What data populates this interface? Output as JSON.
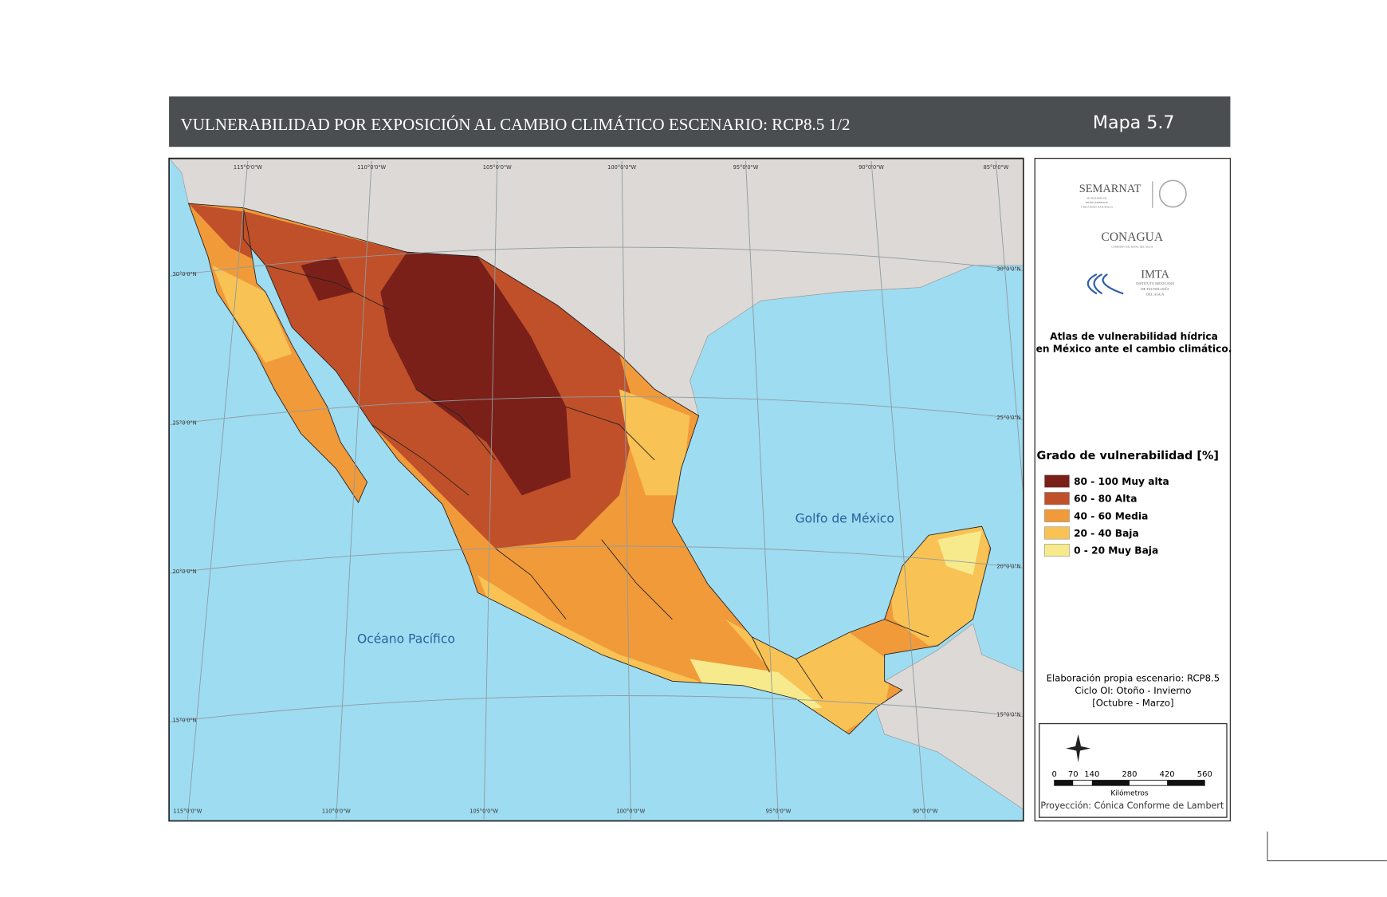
{
  "header": {
    "title": "VULNERABILIDAD POR EXPOSICIÓN AL CAMBIO CLIMÁTICO ESCENARIO: RCP8.5 1/2",
    "map_number": "Mapa 5.7"
  },
  "map": {
    "longitude_labels_top": [
      "115°0'0\"W",
      "110°0'0\"W",
      "105°0'0\"W",
      "100°0'0\"W",
      "95°0'0\"W",
      "90°0'0\"W",
      "85°0'0\"W"
    ],
    "longitude_labels_bottom": [
      "115°0'0\"W",
      "110°0'0\"W",
      "105°0'0\"W",
      "100°0'0\"W",
      "95°0'0\"W",
      "90°0'0\"W"
    ],
    "latitude_labels_left": [
      "30°0'0\"N",
      "25°0'0\"N",
      "20°0'0\"N",
      "15°0'0\"N"
    ],
    "latitude_labels_right": [
      "30°0'0\"N",
      "25°0'0\"N",
      "20°0'0\"N",
      "15°0'0\"N"
    ],
    "places": [
      "Golfo de México",
      "Océano Pacífico"
    ]
  },
  "logos": {
    "semarnat": "SEMARNAT",
    "semarnat_subtitle": [
      "SECRETARÍA DE",
      "MEDIO AMBIENTE",
      "Y RECURSOS NATURALES"
    ],
    "conagua": "CONAGUA",
    "conagua_subtitle": "COMISIÓN NACIONAL DEL AGUA",
    "imta": "IMTA",
    "imta_subtitle": [
      "INSTITUTO MEXICANO",
      "DE TECNOLOGÍA",
      "DEL AGUA"
    ]
  },
  "atlas_title": [
    "Atlas de vulnerabilidad  hídrica",
    "en México ante el cambio climático."
  ],
  "legend": {
    "title": "Grado de vulnerabilidad [%]",
    "items": [
      {
        "label": "80 - 100 Muy alta",
        "color": "#7b2019"
      },
      {
        "label": "60 - 80 Alta",
        "color": "#c0502a"
      },
      {
        "label": "40 - 60 Media",
        "color": "#f19a3a"
      },
      {
        "label": "20 - 40 Baja",
        "color": "#f8c255"
      },
      {
        "label": "0 - 20 Muy Baja",
        "color": "#f6ea8c"
      }
    ]
  },
  "notes": [
    "Elaboración propia escenario: RCP8.5",
    "Ciclo OI: Otoño - Invierno",
    "[Octubre - Marzo]"
  ],
  "scale_bar": {
    "ticks": [
      0,
      70,
      140,
      280,
      420,
      560
    ],
    "unit": "Kilómetros",
    "projection": "Proyección: Cónica Conforme de Lambert"
  }
}
